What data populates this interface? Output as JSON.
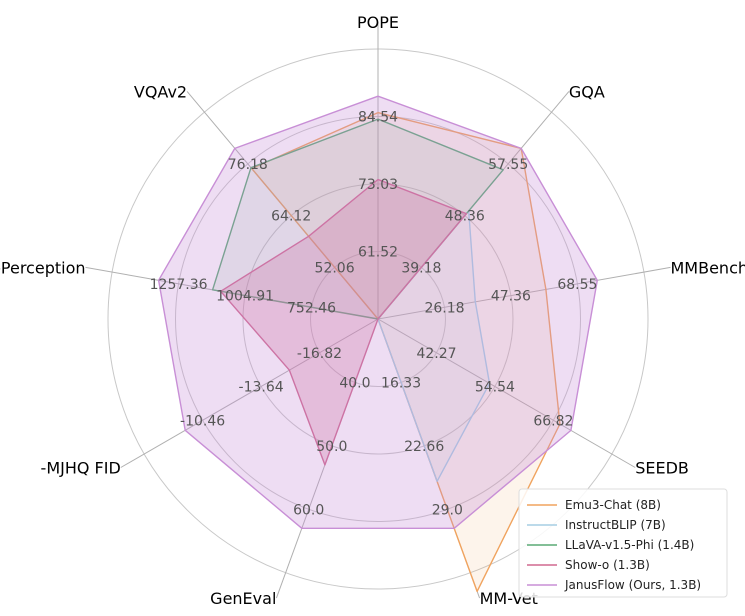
{
  "chart_data": {
    "type": "radar",
    "axes": [
      "POPE",
      "GQA",
      "MMBench",
      "SEEDB",
      "MM-Vet",
      "GenEval",
      "-MJHQ FID",
      "MME-Perception",
      "VQAv2"
    ],
    "axis_ticks": [
      [
        "61.52",
        "73.03",
        "84.54"
      ],
      [
        "39.18",
        "48.36",
        "57.55"
      ],
      [
        "26.18",
        "47.36",
        "68.55"
      ],
      [
        "42.27",
        "54.54",
        "66.82"
      ],
      [
        "16.33",
        "22.66",
        "29.0"
      ],
      [
        "40.0",
        "50.0",
        "60.0"
      ],
      [
        "-16.82",
        "-13.64",
        "-10.46"
      ],
      [
        "752.46",
        "1004.91",
        "1257.36"
      ],
      [
        "52.06",
        "64.12",
        "76.18"
      ]
    ],
    "grid": true,
    "legend_position": "bottom-right",
    "series": [
      {
        "name": "Emu3-Chat (8B)",
        "color": "#f0a35e",
        "fill": false,
        "values": [
          85.2,
          60.3,
          58.5,
          68.2,
          37.2,
          null,
          null,
          null,
          75.1
        ]
      },
      {
        "name": "InstructBLIP (7B)",
        "color": "#a6cee3",
        "fill": false,
        "values": [
          null,
          49.2,
          36.0,
          53.4,
          26.2,
          null,
          null,
          null,
          null
        ]
      },
      {
        "name": "LLaVA-v1.5-Phi (1.4B)",
        "color": "#5aaa75",
        "fill": false,
        "values": [
          84.1,
          56.5,
          null,
          null,
          null,
          null,
          null,
          1128.0,
          75.3
        ]
      },
      {
        "name": "Show-o (1.3B)",
        "color": "#d0688f",
        "fill": true,
        "values": [
          73.8,
          48.7,
          null,
          null,
          null,
          53.0,
          -15.18,
          1097.2,
          59.3
        ]
      },
      {
        "name": "JanusFlow (Ours, 1.3B)",
        "color": "#c88fd6",
        "fill": true,
        "values": [
          88.0,
          60.3,
          74.9,
          70.5,
          30.9,
          63.0,
          -9.51,
          1333.1,
          79.8
        ]
      }
    ]
  }
}
